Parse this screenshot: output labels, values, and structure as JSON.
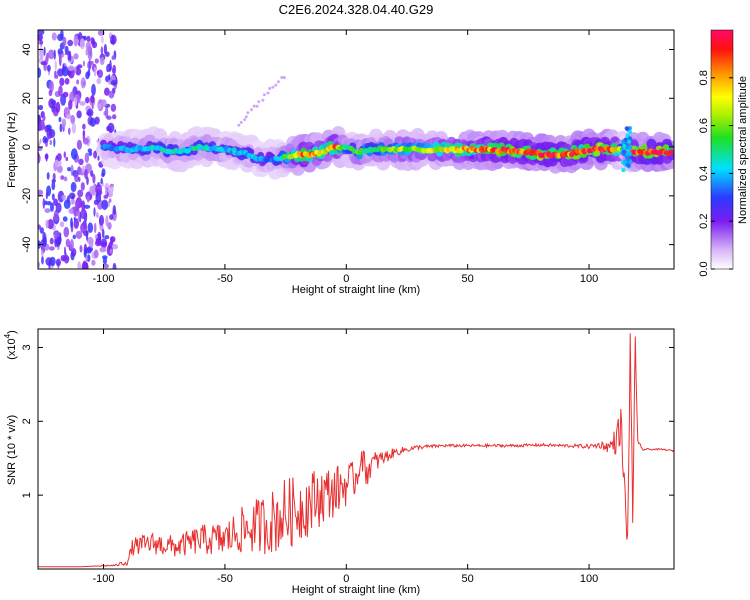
{
  "title": "C2E6.2024.328.04.40.G29",
  "chart_data": [
    {
      "type": "heatmap",
      "panel": "spectrogram",
      "xlabel": "Height of straight line (km)",
      "ylabel": "Frequency (Hz)",
      "xlim": [
        -127,
        135
      ],
      "ylim": [
        -50,
        48
      ],
      "x_ticks": [
        -100,
        -50,
        0,
        50,
        100
      ],
      "y_ticks": [
        -40,
        -20,
        0,
        20,
        40
      ],
      "colorbar": {
        "label": "Normalized spectral amplitude",
        "range": [
          0,
          1
        ],
        "ticks": [
          0.0,
          0.2,
          0.4,
          0.6,
          0.8
        ],
        "tick_labels": [
          "0.0",
          "0.2",
          "0.4",
          "0.6",
          "0.8"
        ]
      },
      "ridge": {
        "x": [
          -100,
          -90,
          -80,
          -70,
          -60,
          -50,
          -40,
          -35,
          -30,
          -25,
          -20,
          -15,
          -10,
          -5,
          0,
          5,
          10,
          20,
          40,
          60,
          75,
          80,
          85,
          90,
          95,
          100,
          105,
          110,
          113,
          115,
          118,
          125,
          135
        ],
        "frequency": [
          0,
          -1,
          0,
          -2,
          0,
          -1,
          -3,
          -5,
          -5,
          -4,
          -3,
          -3,
          -2,
          0,
          0,
          -2,
          -1,
          -1,
          -1,
          -1,
          -2,
          -3,
          -3,
          -3,
          -2,
          -1,
          -1,
          -1,
          -1,
          -2,
          -2,
          -2,
          -2
        ],
        "amplitude": [
          0.35,
          0.4,
          0.45,
          0.45,
          0.45,
          0.4,
          0.4,
          0.35,
          0.35,
          0.5,
          0.8,
          0.85,
          0.7,
          0.85,
          0.5,
          0.55,
          0.5,
          0.6,
          0.7,
          0.85,
          0.9,
          0.95,
          0.9,
          0.85,
          0.9,
          0.9,
          0.95,
          0.8,
          0.6,
          0.3,
          0.9,
          0.95,
          0.95
        ]
      }
    },
    {
      "type": "line",
      "panel": "snr",
      "xlabel": "Height of straight line (km)",
      "ylabel": "SNR (10 * v/v)",
      "multiplier_label": "(x10",
      "multiplier_exponent": "4",
      "multiplier_close": ")",
      "xlim": [
        -127,
        135
      ],
      "ylim": [
        0,
        3.25
      ],
      "x_ticks": [
        -100,
        -50,
        0,
        50,
        100
      ],
      "y_ticks": [
        1,
        2,
        3
      ],
      "color": "#e83030",
      "series": [
        {
          "x": [
            -127,
            -110,
            -95,
            -90,
            -88,
            -80,
            -70,
            -60,
            -50,
            -45,
            -40,
            -35,
            -30,
            -25,
            -20,
            -15,
            -10,
            -5,
            0,
            3,
            5,
            6,
            8,
            10,
            12,
            15,
            20,
            25,
            30,
            40,
            50,
            60,
            70,
            80,
            90,
            100,
            105,
            108,
            110,
            112,
            113,
            114,
            115,
            116,
            117,
            118,
            119,
            120,
            122,
            125,
            130,
            135
          ],
          "values": [
            0.03,
            0.03,
            0.05,
            0.1,
            0.3,
            0.35,
            0.3,
            0.4,
            0.4,
            0.5,
            0.55,
            0.6,
            0.65,
            0.75,
            0.8,
            0.9,
            1.0,
            1.05,
            1.15,
            1.2,
            1.3,
            1.6,
            1.3,
            1.4,
            1.45,
            1.5,
            1.58,
            1.62,
            1.65,
            1.67,
            1.67,
            1.67,
            1.67,
            1.68,
            1.67,
            1.66,
            1.68,
            1.65,
            1.7,
            1.8,
            2.0,
            1.4,
            0.8,
            0.4,
            3.2,
            0.5,
            3.25,
            1.7,
            1.62,
            1.62,
            1.62,
            1.6
          ],
          "noise": [
            0,
            0,
            0.01,
            0.05,
            0.12,
            0.15,
            0.15,
            0.2,
            0.25,
            0.3,
            0.35,
            0.4,
            0.45,
            0.5,
            0.45,
            0.45,
            0.4,
            0.35,
            0.3,
            0.25,
            0.2,
            0.2,
            0.2,
            0.18,
            0.15,
            0.1,
            0.06,
            0.04,
            0.03,
            0.02,
            0.02,
            0.02,
            0.02,
            0.02,
            0.02,
            0.03,
            0.05,
            0.08,
            0.15,
            0.25,
            0.3,
            0.3,
            0.3,
            0.2,
            0.2,
            0.2,
            0.1,
            0.05,
            0.02,
            0.01,
            0.01,
            0.01
          ]
        }
      ]
    }
  ]
}
